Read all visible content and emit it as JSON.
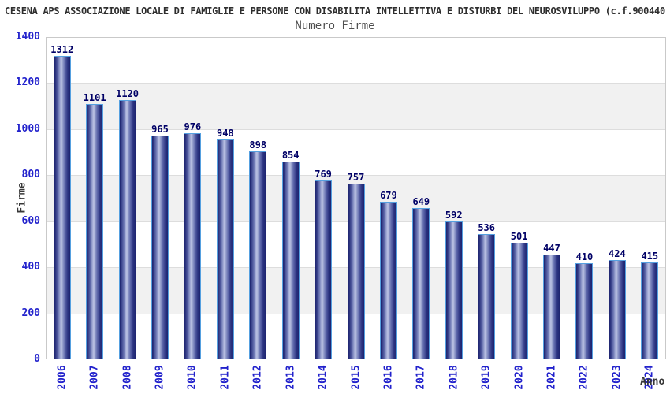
{
  "chart_data": {
    "type": "bar",
    "title": "CESENA APS ASSOCIAZIONE LOCALE DI FAMIGLIE E PERSONE CON DISABILITA INTELLETTIVA E DISTURBI DEL NEUROSVILUPPO (c.f.900440",
    "subtitle": "Numero Firme",
    "xlabel": "Anno",
    "ylabel": "Firme",
    "categories": [
      "2006",
      "2007",
      "2008",
      "2009",
      "2010",
      "2011",
      "2012",
      "2013",
      "2014",
      "2015",
      "2016",
      "2017",
      "2018",
      "2019",
      "2020",
      "2021",
      "2022",
      "2023",
      "2024"
    ],
    "values": [
      1312,
      1101,
      1120,
      965,
      976,
      948,
      898,
      854,
      769,
      757,
      679,
      649,
      592,
      536,
      501,
      447,
      410,
      424,
      415
    ],
    "ylim": [
      0,
      1400
    ],
    "yticks": [
      0,
      200,
      400,
      600,
      800,
      1000,
      1200,
      1400
    ],
    "grid": true,
    "bands": "alternating horizontal gray bands between gridlines",
    "value_labels": true,
    "legend_position": "none"
  },
  "colors": {
    "background": "#ffffff",
    "title": "#2e2e2e",
    "subtitle": "#4f4f4f",
    "axis_tick_label": "#2222cc",
    "axis_title": "#383838",
    "value_label": "#000066",
    "band_fill": "#f1f1f1",
    "gridline": "#dddddd",
    "plot_border": "#c9c9c9",
    "bar_edge": "#55a0e0",
    "bar_dark": "#1d246f",
    "bar_light": "#bcc3e4"
  }
}
